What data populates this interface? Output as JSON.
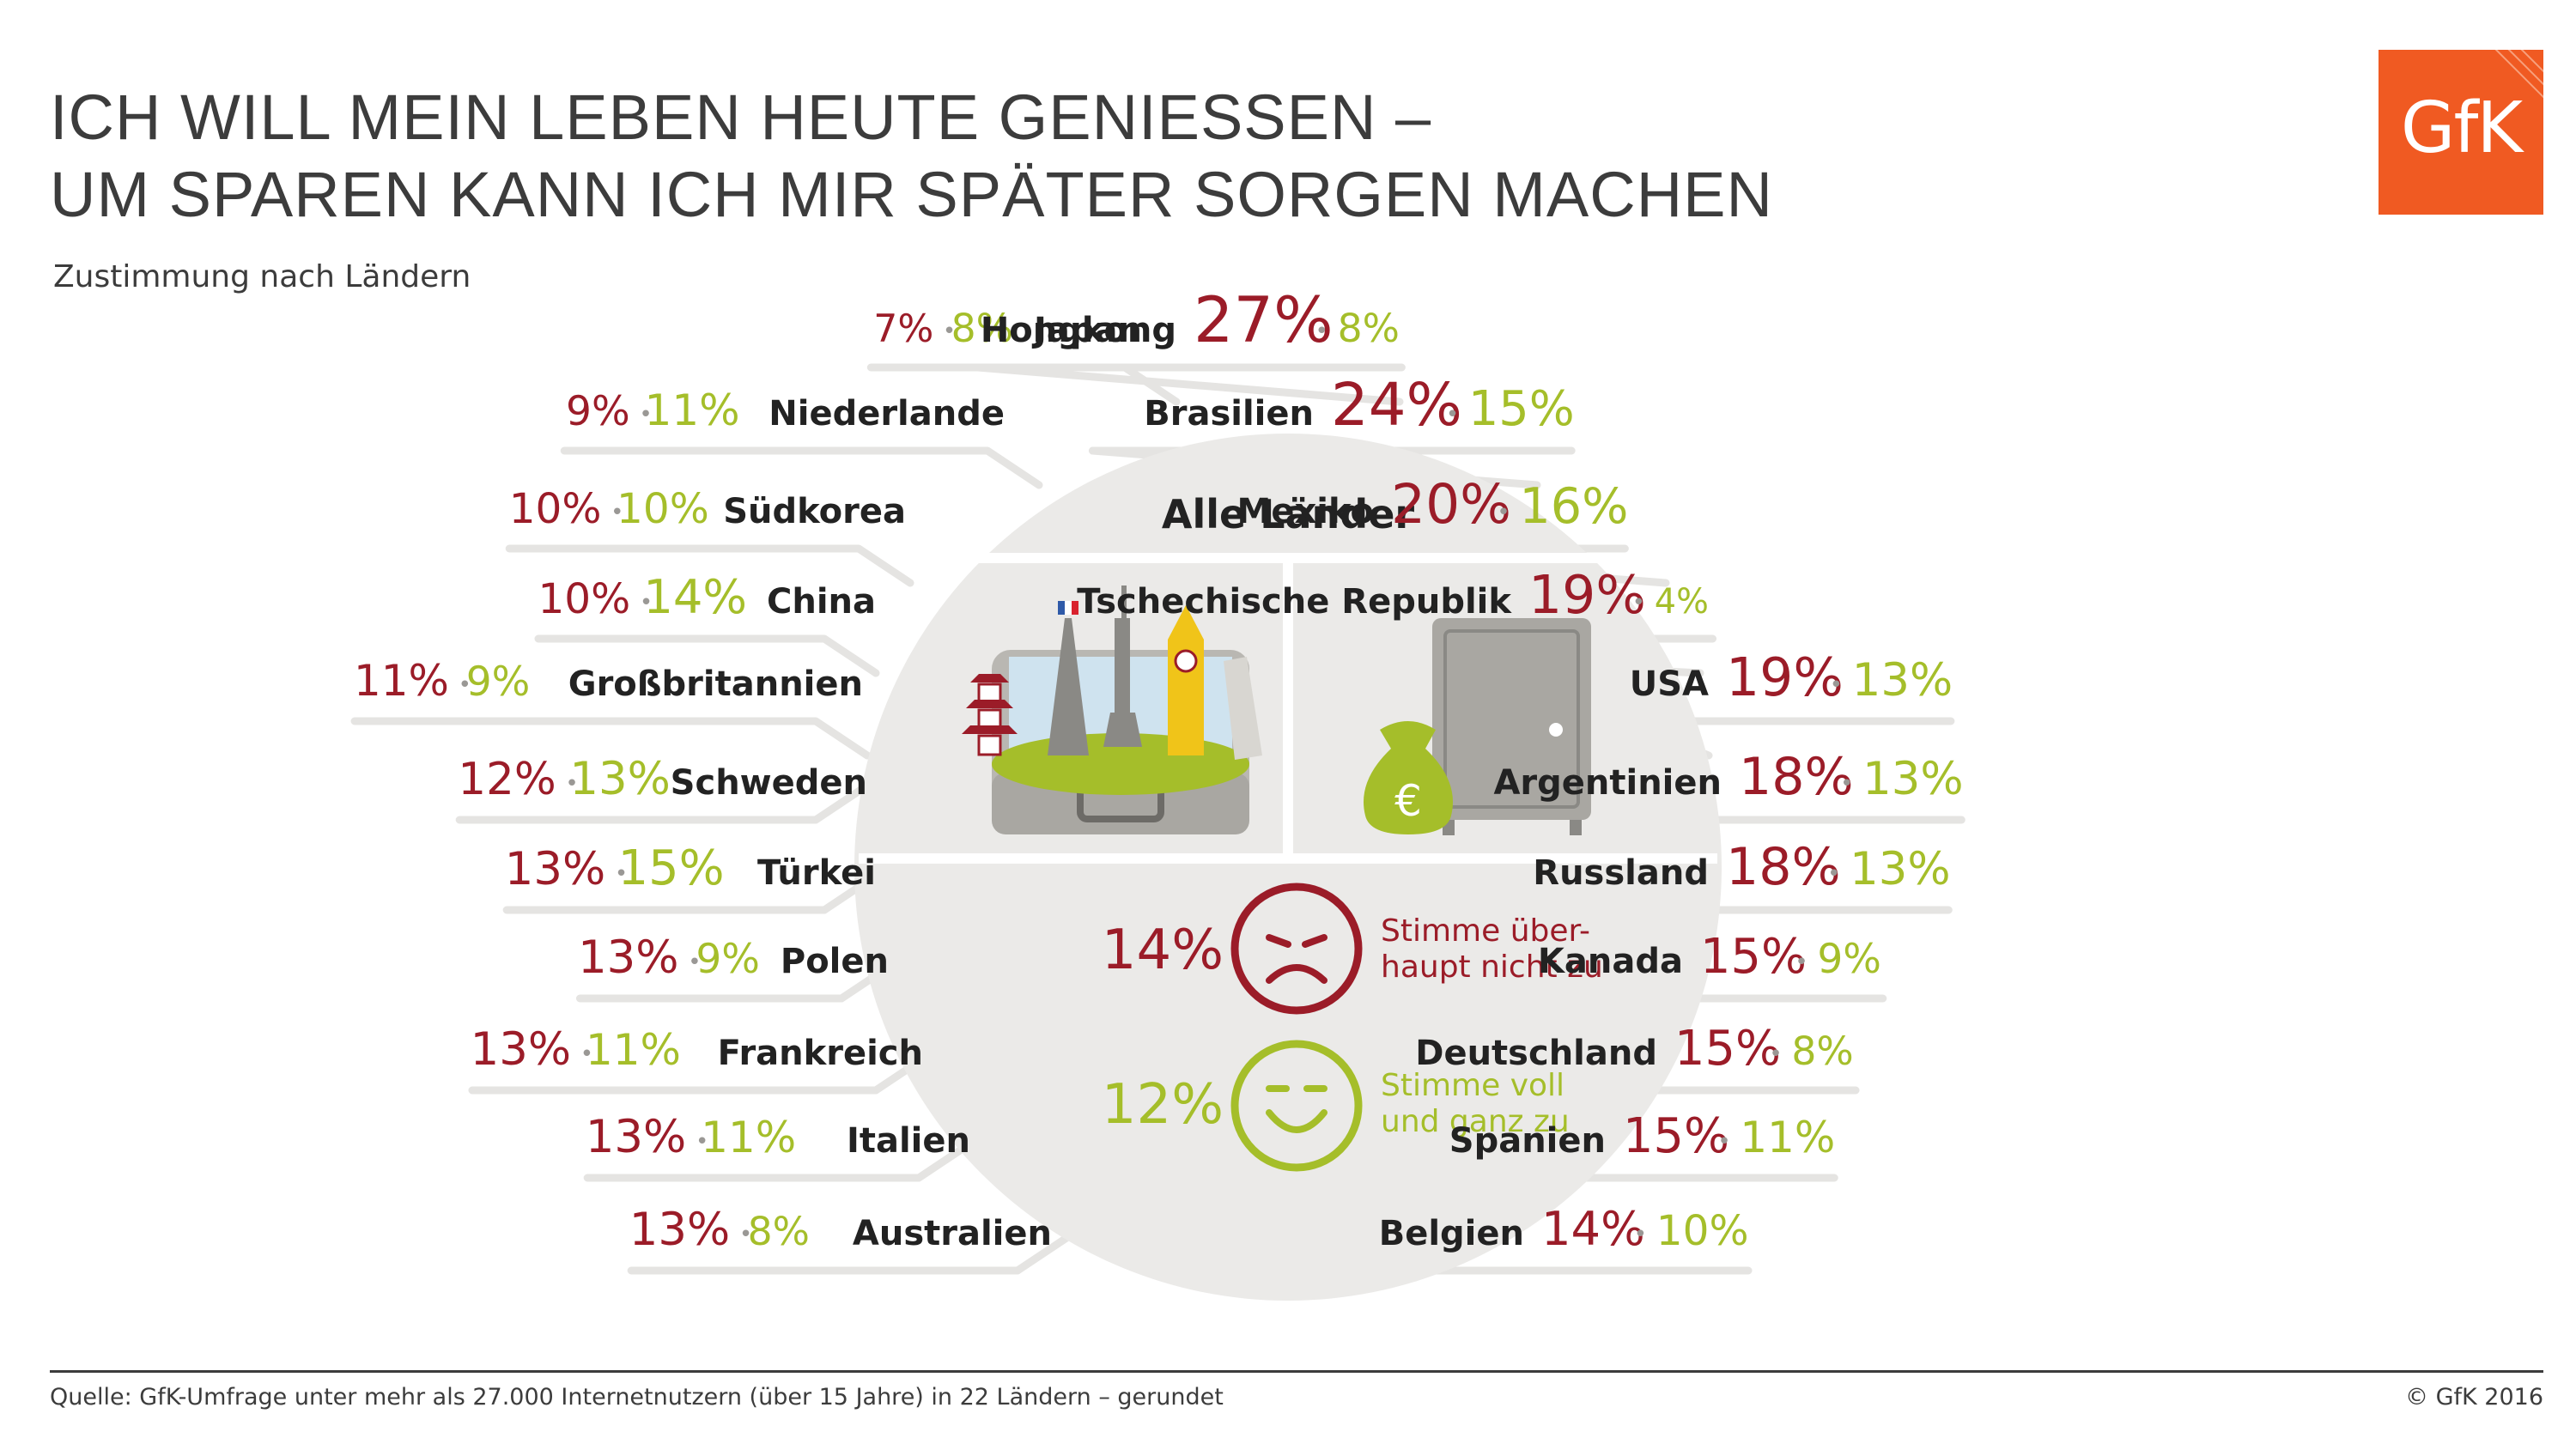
{
  "header": {
    "title_line1": "ICH WILL MEIN LEBEN HEUTE GENIESSEN –",
    "title_line2": "UM SPAREN KANN ICH MIR SPÄTER SORGEN MACHEN",
    "subtitle": "Zustimmung nach Ländern",
    "logo": "GfK"
  },
  "colors": {
    "disagree": "#9b1c28",
    "agree": "#a5be2a",
    "line": "#e5e4e2",
    "text": "#222222",
    "circle": "#ebeae8"
  },
  "center": {
    "title": "Alle Länder",
    "disagree_value": "14%",
    "disagree_label_line1": "Stimme über-",
    "disagree_label_line2": "haupt nicht zu",
    "agree_value": "12%",
    "agree_label_line1": "Stimme voll",
    "agree_label_line2": "und ganz zu",
    "icons": [
      "sad-face-icon",
      "happy-face-icon",
      "suitcase-landmarks-icon",
      "safe-money-bag-icon"
    ]
  },
  "chart_data": {
    "type": "table",
    "title": "ICH WILL MEIN LEBEN HEUTE GENIESSEN – UM SPAREN KANN ICH MIR SPÄTER SORGEN MACHEN",
    "subtitle": "Zustimmung nach Ländern",
    "series": [
      {
        "name": "Stimme überhaupt nicht zu"
      },
      {
        "name": "Stimme voll und ganz zu"
      }
    ],
    "overall": {
      "label": "Alle Länder",
      "disagree": 14,
      "agree": 12
    },
    "left": [
      {
        "country": "Japan",
        "disagree": 7,
        "agree": 8
      },
      {
        "country": "Niederlande",
        "disagree": 9,
        "agree": 11
      },
      {
        "country": "Südkorea",
        "disagree": 10,
        "agree": 10
      },
      {
        "country": "China",
        "disagree": 10,
        "agree": 14
      },
      {
        "country": "Großbritannien",
        "disagree": 11,
        "agree": 9
      },
      {
        "country": "Schweden",
        "disagree": 12,
        "agree": 13
      },
      {
        "country": "Türkei",
        "disagree": 13,
        "agree": 15
      },
      {
        "country": "Polen",
        "disagree": 13,
        "agree": 9
      },
      {
        "country": "Frankreich",
        "disagree": 13,
        "agree": 11
      },
      {
        "country": "Italien",
        "disagree": 13,
        "agree": 11
      },
      {
        "country": "Australien",
        "disagree": 13,
        "agree": 8
      }
    ],
    "right": [
      {
        "country": "Hongkong",
        "disagree": 27,
        "agree": 8
      },
      {
        "country": "Brasilien",
        "disagree": 24,
        "agree": 15
      },
      {
        "country": "Mexiko",
        "disagree": 20,
        "agree": 16
      },
      {
        "country": "Tschechische Republik",
        "disagree": 19,
        "agree": 4
      },
      {
        "country": "USA",
        "disagree": 19,
        "agree": 13
      },
      {
        "country": "Argentinien",
        "disagree": 18,
        "agree": 13
      },
      {
        "country": "Russland",
        "disagree": 18,
        "agree": 13
      },
      {
        "country": "Kanada",
        "disagree": 15,
        "agree": 9
      },
      {
        "country": "Deutschland",
        "disagree": 15,
        "agree": 8
      },
      {
        "country": "Spanien",
        "disagree": 15,
        "agree": 11
      },
      {
        "country": "Belgien",
        "disagree": 14,
        "agree": 10
      }
    ]
  },
  "footer": {
    "source": "Quelle: GfK-Umfrage unter mehr als 27.000 Internetnutzern (über 15 Jahre) in 22 Ländern – gerundet",
    "copyright": "© GfK 2016"
  }
}
